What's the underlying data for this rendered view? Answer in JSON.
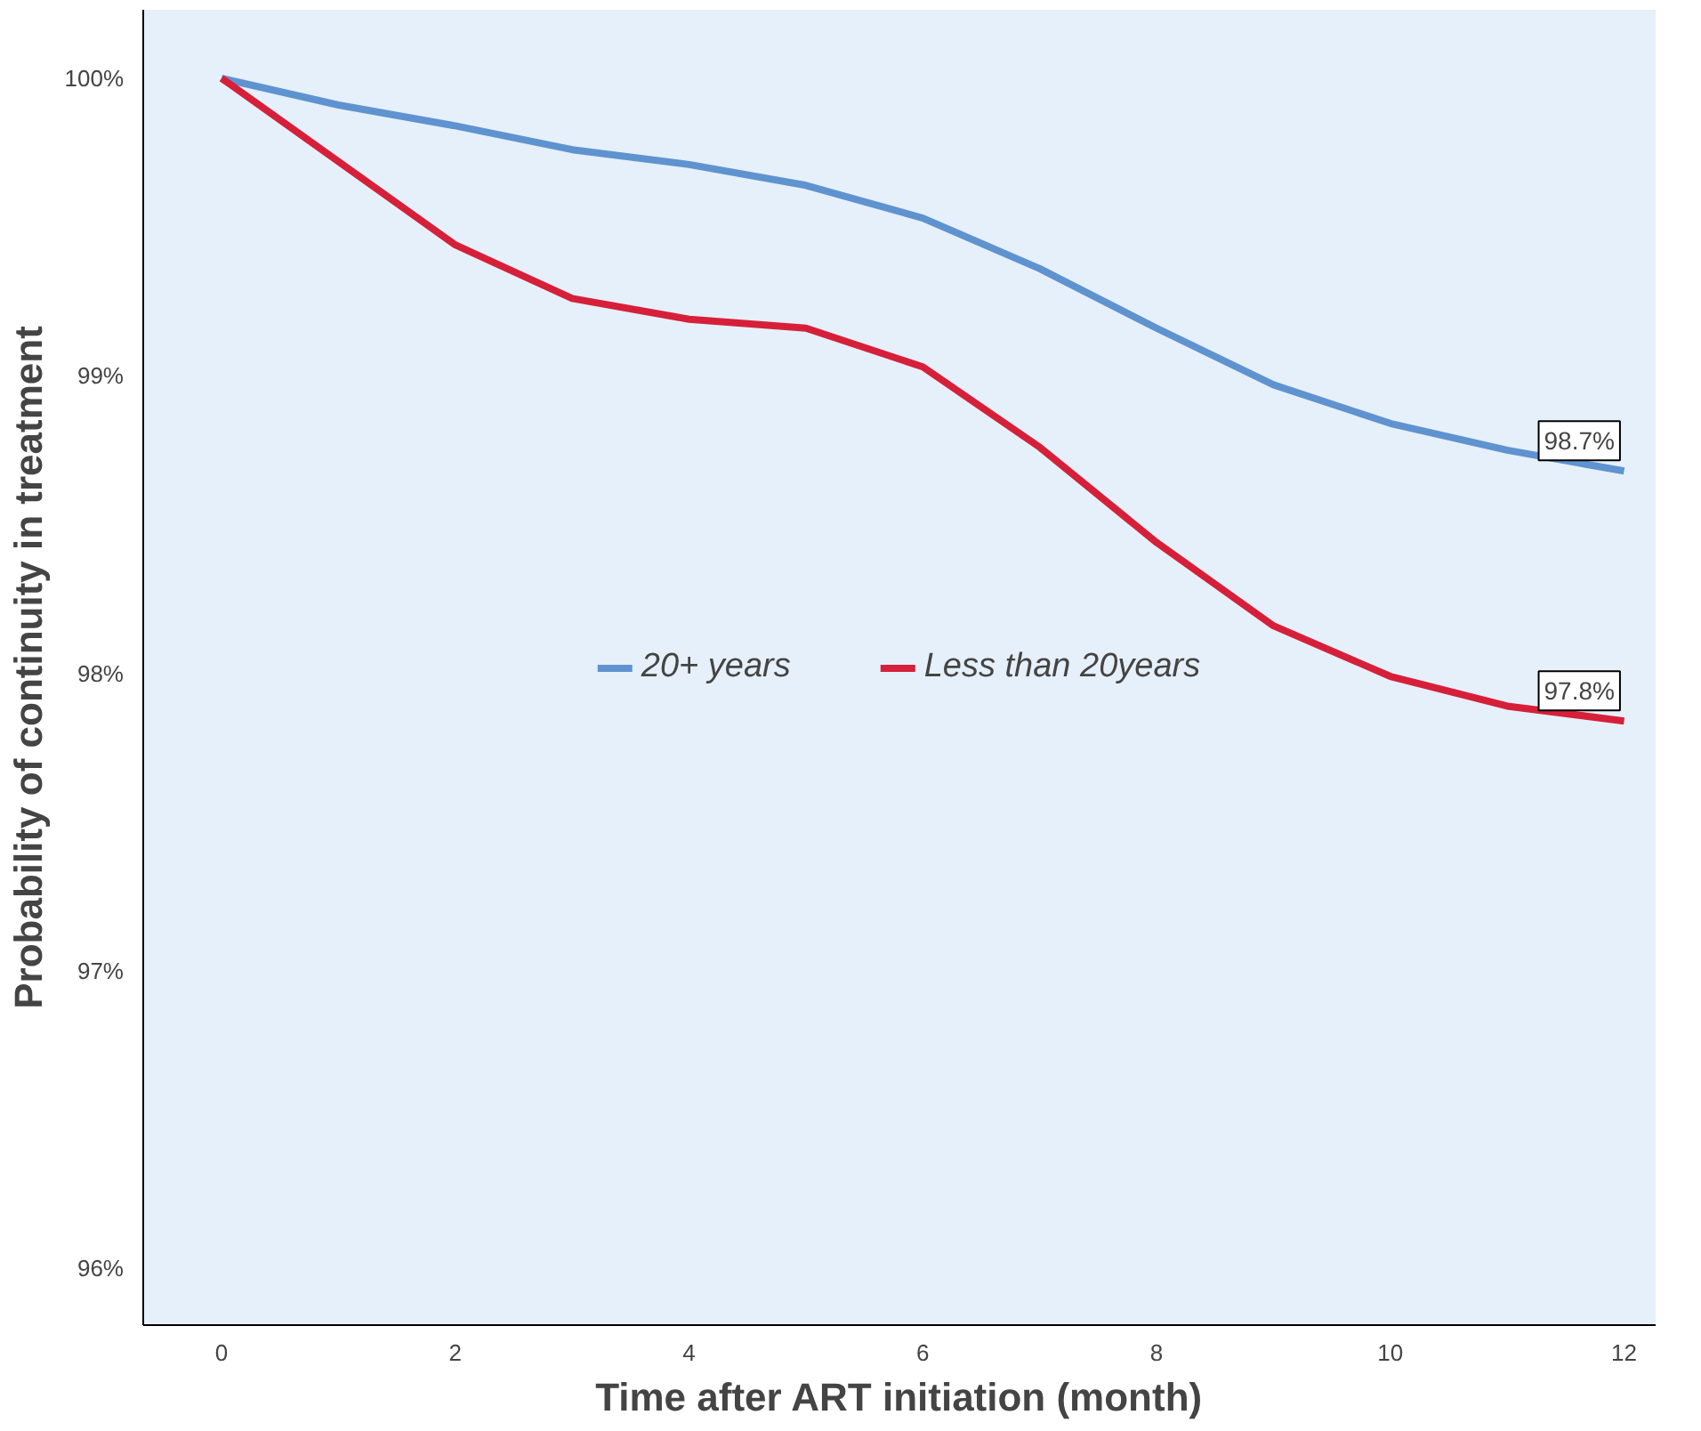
{
  "chart_data": {
    "type": "line",
    "xlabel": "Time after ART initiation (month)",
    "ylabel": "Probability of continuity in treatment",
    "x": [
      0,
      1,
      2,
      3,
      4,
      5,
      6,
      7,
      8,
      9,
      10,
      11,
      12
    ],
    "series": [
      {
        "name": "20+ years",
        "color": "#5f93d0",
        "values": [
          100,
          99.91,
          99.84,
          99.76,
          99.71,
          99.64,
          99.53,
          99.36,
          99.16,
          98.97,
          98.84,
          98.75,
          98.68
        ]
      },
      {
        "name": "Less than 20years",
        "color": "#d6203a",
        "values": [
          100,
          99.72,
          99.44,
          99.26,
          99.19,
          99.16,
          99.03,
          98.76,
          98.44,
          98.16,
          97.99,
          97.89,
          97.84
        ]
      }
    ],
    "annotations": [
      {
        "text": "98.7%",
        "x": 12,
        "y": 98.68
      },
      {
        "text": "97.8%",
        "x": 12,
        "y": 97.84
      }
    ],
    "xlim": [
      -0.67,
      12.27
    ],
    "ylim": [
      95.81,
      100.23
    ],
    "xticks": [
      0,
      2,
      4,
      6,
      8,
      10,
      12
    ],
    "yticks": [
      {
        "value": 96,
        "label": "96%"
      },
      {
        "value": 97,
        "label": "97%"
      },
      {
        "value": 98,
        "label": "98%"
      },
      {
        "value": 99,
        "label": "99%"
      },
      {
        "value": 100,
        "label": "100%"
      }
    ],
    "grid": false,
    "legend": "center",
    "marker": "none",
    "line_style": "solid"
  }
}
